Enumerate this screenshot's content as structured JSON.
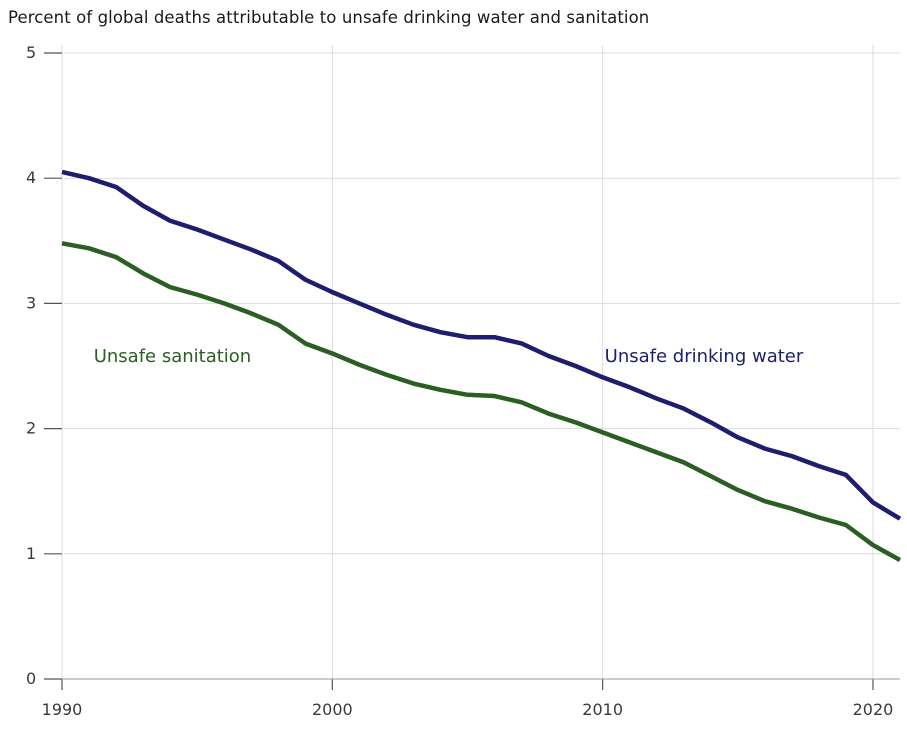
{
  "chart_data": {
    "type": "line",
    "title": "Percent of global deaths attributable to unsafe drinking water and sanitation",
    "xlabel": "",
    "ylabel": "",
    "xlim": [
      1990,
      2021
    ],
    "ylim": [
      0,
      5
    ],
    "x_ticks": [
      1990,
      2000,
      2010,
      2020
    ],
    "y_ticks": [
      0,
      1,
      2,
      3,
      4,
      5
    ],
    "grid": true,
    "x": [
      1990,
      1991,
      1992,
      1993,
      1994,
      1995,
      1996,
      1997,
      1998,
      1999,
      2000,
      2001,
      2002,
      2003,
      2004,
      2005,
      2006,
      2007,
      2008,
      2009,
      2010,
      2011,
      2012,
      2013,
      2014,
      2015,
      2016,
      2017,
      2018,
      2019,
      2020,
      2021
    ],
    "series": [
      {
        "name": "Unsafe drinking water",
        "color": "#1f1d6e",
        "values": [
          4.05,
          4.0,
          3.93,
          3.78,
          3.66,
          3.59,
          3.51,
          3.43,
          3.34,
          3.19,
          3.09,
          3.0,
          2.91,
          2.83,
          2.77,
          2.73,
          2.73,
          2.68,
          2.58,
          2.5,
          2.41,
          2.33,
          2.24,
          2.16,
          2.05,
          1.93,
          1.84,
          1.78,
          1.7,
          1.63,
          1.41,
          1.28
        ]
      },
      {
        "name": "Unsafe sanitation",
        "color": "#2b5e23",
        "values": [
          3.48,
          3.44,
          3.37,
          3.24,
          3.13,
          3.07,
          3.0,
          2.92,
          2.83,
          2.68,
          2.6,
          2.51,
          2.43,
          2.36,
          2.31,
          2.27,
          2.26,
          2.21,
          2.12,
          2.05,
          1.97,
          1.89,
          1.81,
          1.73,
          1.62,
          1.51,
          1.42,
          1.36,
          1.29,
          1.23,
          1.07,
          0.95
        ]
      }
    ]
  }
}
